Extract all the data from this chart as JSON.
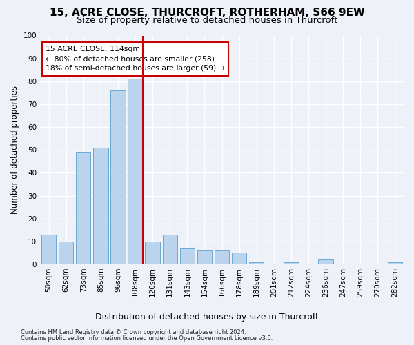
{
  "title": "15, ACRE CLOSE, THURCROFT, ROTHERHAM, S66 9EW",
  "subtitle": "Size of property relative to detached houses in Thurcroft",
  "xlabel": "Distribution of detached houses by size in Thurcroft",
  "ylabel": "Number of detached properties",
  "footer_line1": "Contains HM Land Registry data © Crown copyright and database right 2024.",
  "footer_line2": "Contains public sector information licensed under the Open Government Licence v3.0.",
  "bar_labels": [
    "50sqm",
    "62sqm",
    "73sqm",
    "85sqm",
    "96sqm",
    "108sqm",
    "120sqm",
    "131sqm",
    "143sqm",
    "154sqm",
    "166sqm",
    "178sqm",
    "189sqm",
    "201sqm",
    "212sqm",
    "224sqm",
    "236sqm",
    "247sqm",
    "259sqm",
    "270sqm",
    "282sqm"
  ],
  "bar_values": [
    13,
    10,
    49,
    51,
    76,
    81,
    10,
    13,
    7,
    6,
    6,
    5,
    1,
    0,
    1,
    0,
    2,
    0,
    0,
    0,
    1
  ],
  "bar_color": "#bad4ee",
  "bar_edge_color": "#6aaad4",
  "highlight_index": 5,
  "highlight_line_color": "#cc0000",
  "annotation_text": "15 ACRE CLOSE: 114sqm\n← 80% of detached houses are smaller (258)\n18% of semi-detached houses are larger (59) →",
  "annotation_box_color": "#ffffff",
  "annotation_box_edge": "#cc0000",
  "ylim": [
    0,
    100
  ],
  "yticks": [
    0,
    10,
    20,
    30,
    40,
    50,
    60,
    70,
    80,
    90,
    100
  ],
  "background_color": "#eef2f8",
  "grid_color": "#ffffff",
  "title_fontsize": 11,
  "subtitle_fontsize": 9.5,
  "axis_label_fontsize": 8.5,
  "tick_fontsize": 7.5,
  "footer_fontsize": 6.0
}
